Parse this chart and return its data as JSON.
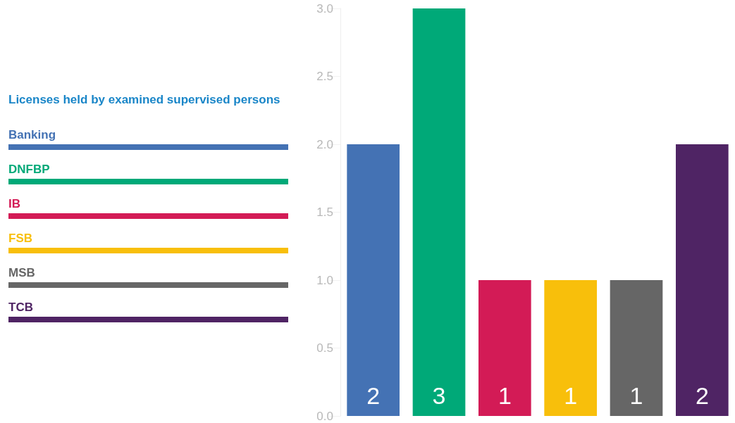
{
  "chart_data": {
    "type": "bar",
    "legend_title": "Licenses held by examined supervised persons",
    "categories": [
      null,
      null,
      null,
      null,
      null,
      null
    ],
    "stacked": true,
    "data_labels": true,
    "legend": "left",
    "grid": false,
    "ylim": [
      0,
      3
    ],
    "yticks": [
      {
        "value": 0,
        "label": "0.0"
      },
      {
        "value": 0.5,
        "label": "0.5"
      },
      {
        "value": 1,
        "label": "1.0"
      },
      {
        "value": 1.5,
        "label": "1.5"
      },
      {
        "value": 2,
        "label": "2.0"
      },
      {
        "value": 2.5,
        "label": "2.5"
      },
      {
        "value": 3,
        "label": "3.0"
      }
    ],
    "series": [
      {
        "name": "Banking",
        "color": "#4472b4",
        "values": [
          2,
          null,
          null,
          null,
          null,
          null
        ]
      },
      {
        "name": "DNFBP",
        "color": "#00a978",
        "values": [
          null,
          3,
          null,
          null,
          null,
          null
        ]
      },
      {
        "name": "IB",
        "color": "#d31b56",
        "values": [
          null,
          null,
          1,
          null,
          null,
          null
        ]
      },
      {
        "name": "FSB",
        "color": "#f8bf0b",
        "values": [
          null,
          null,
          null,
          1,
          null,
          null
        ]
      },
      {
        "name": "MSB",
        "color": "#666666",
        "values": [
          null,
          null,
          null,
          null,
          1,
          null
        ]
      },
      {
        "name": "TCB",
        "color": "#4f2464",
        "values": [
          null,
          null,
          null,
          null,
          null,
          2
        ]
      }
    ]
  }
}
